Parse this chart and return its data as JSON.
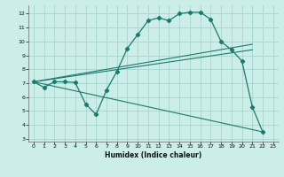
{
  "xlabel": "Humidex (Indice chaleur)",
  "background_color": "#cceee8",
  "grid_color": "#aad8d0",
  "line_color": "#1a7a6e",
  "xlim": [
    -0.5,
    23.5
  ],
  "ylim": [
    2.8,
    12.6
  ],
  "xticks": [
    0,
    1,
    2,
    3,
    4,
    5,
    6,
    7,
    8,
    9,
    10,
    11,
    12,
    13,
    14,
    15,
    16,
    17,
    18,
    19,
    20,
    21,
    22,
    23
  ],
  "yticks": [
    3,
    4,
    5,
    6,
    7,
    8,
    9,
    10,
    11,
    12
  ],
  "curve1_x": [
    0,
    1,
    2,
    3,
    4,
    5,
    6,
    7,
    8,
    9,
    10,
    11,
    12,
    13,
    14,
    15,
    16,
    17,
    18,
    19,
    20,
    21,
    22
  ],
  "curve1_y": [
    7.1,
    6.7,
    7.1,
    7.1,
    7.05,
    5.5,
    4.75,
    6.5,
    7.85,
    9.5,
    10.5,
    11.5,
    11.7,
    11.5,
    12.0,
    12.1,
    12.1,
    11.6,
    10.0,
    9.4,
    8.6,
    5.3,
    3.5
  ],
  "line1_x": [
    0,
    21
  ],
  "line1_y": [
    7.1,
    9.8
  ],
  "line2_x": [
    0,
    21
  ],
  "line2_y": [
    7.1,
    9.4
  ],
  "line3_x": [
    0,
    22
  ],
  "line3_y": [
    7.1,
    3.5
  ]
}
